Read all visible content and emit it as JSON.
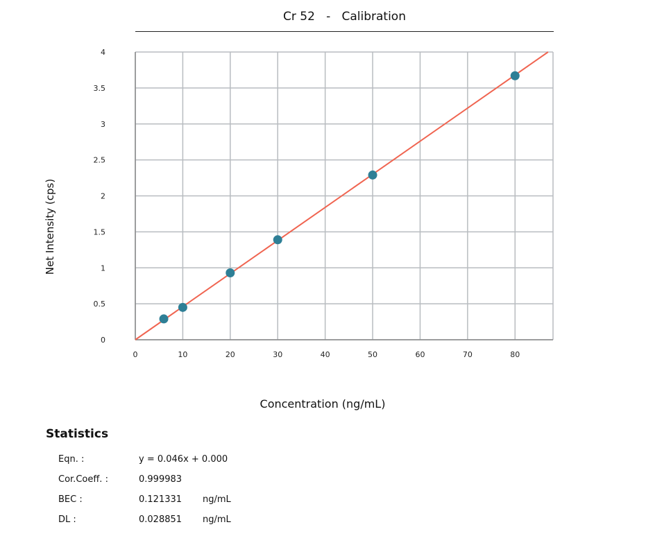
{
  "chart_data": {
    "type": "scatter",
    "title": "Cr 52   -   Calibration",
    "xlabel": "Concentration (ng/mL)",
    "ylabel": "Net Intensity (cps)",
    "xlim": [
      0,
      88
    ],
    "ylim": [
      0,
      4
    ],
    "xticks": [
      0,
      10,
      20,
      30,
      40,
      50,
      60,
      70,
      80
    ],
    "yticks": [
      0,
      0.5,
      1,
      1.5,
      2,
      2.5,
      3,
      3.5,
      4
    ],
    "grid": true,
    "points": {
      "x": [
        6,
        10,
        20,
        30,
        50,
        80
      ],
      "y": [
        0.29,
        0.45,
        0.93,
        1.39,
        2.29,
        3.67
      ]
    },
    "fit": {
      "slope": 0.046,
      "intercept": 0.0
    },
    "colors": {
      "points": "#2e7f96",
      "fit": "#f06450",
      "grid": "#b8bcc0"
    }
  },
  "statistics": {
    "heading": "Statistics",
    "rows": [
      {
        "label": "Eqn. :",
        "value": "y = 0.046x + 0.000",
        "unit": ""
      },
      {
        "label": "Cor.Coeff. :",
        "value": "0.999983",
        "unit": ""
      },
      {
        "label": "BEC :",
        "value": "0.121331",
        "unit": "ng/mL"
      },
      {
        "label": "DL :",
        "value": "0.028851",
        "unit": "ng/mL"
      }
    ]
  }
}
